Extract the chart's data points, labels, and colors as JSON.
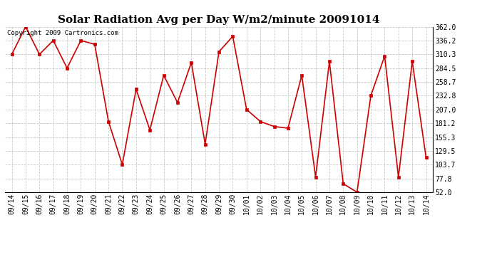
{
  "title": "Solar Radiation Avg per Day W/m2/minute 20091014",
  "copyright": "Copyright 2009 Cartronics.com",
  "labels": [
    "09/14",
    "09/15",
    "09/16",
    "09/17",
    "09/18",
    "09/19",
    "09/20",
    "09/21",
    "09/22",
    "09/23",
    "09/24",
    "09/25",
    "09/26",
    "09/27",
    "09/28",
    "09/29",
    "09/30",
    "10/01",
    "10/02",
    "10/03",
    "10/04",
    "10/05",
    "10/06",
    "10/07",
    "10/08",
    "10/09",
    "10/10",
    "10/11",
    "10/12",
    "10/13",
    "10/14"
  ],
  "values": [
    310.3,
    362.0,
    310.3,
    336.2,
    284.5,
    336.2,
    329.0,
    184.5,
    103.7,
    245.0,
    168.5,
    271.0,
    220.0,
    295.0,
    142.0,
    315.0,
    344.0,
    207.0,
    184.5,
    175.0,
    172.0,
    271.0,
    80.5,
    297.0,
    68.0,
    52.0,
    232.8,
    307.0,
    80.5,
    297.0,
    117.0
  ],
  "ymin": 52.0,
  "ymax": 362.0,
  "yticks": [
    52.0,
    77.8,
    103.7,
    129.5,
    155.3,
    181.2,
    207.0,
    232.8,
    258.7,
    284.5,
    310.3,
    336.2,
    362.0
  ],
  "line_color": "#cc0000",
  "marker_color": "#cc0000",
  "bg_color": "#ffffff",
  "grid_color": "#bbbbbb",
  "title_fontsize": 11,
  "copyright_fontsize": 6.5,
  "tick_fontsize": 7,
  "ytick_fontsize": 7
}
